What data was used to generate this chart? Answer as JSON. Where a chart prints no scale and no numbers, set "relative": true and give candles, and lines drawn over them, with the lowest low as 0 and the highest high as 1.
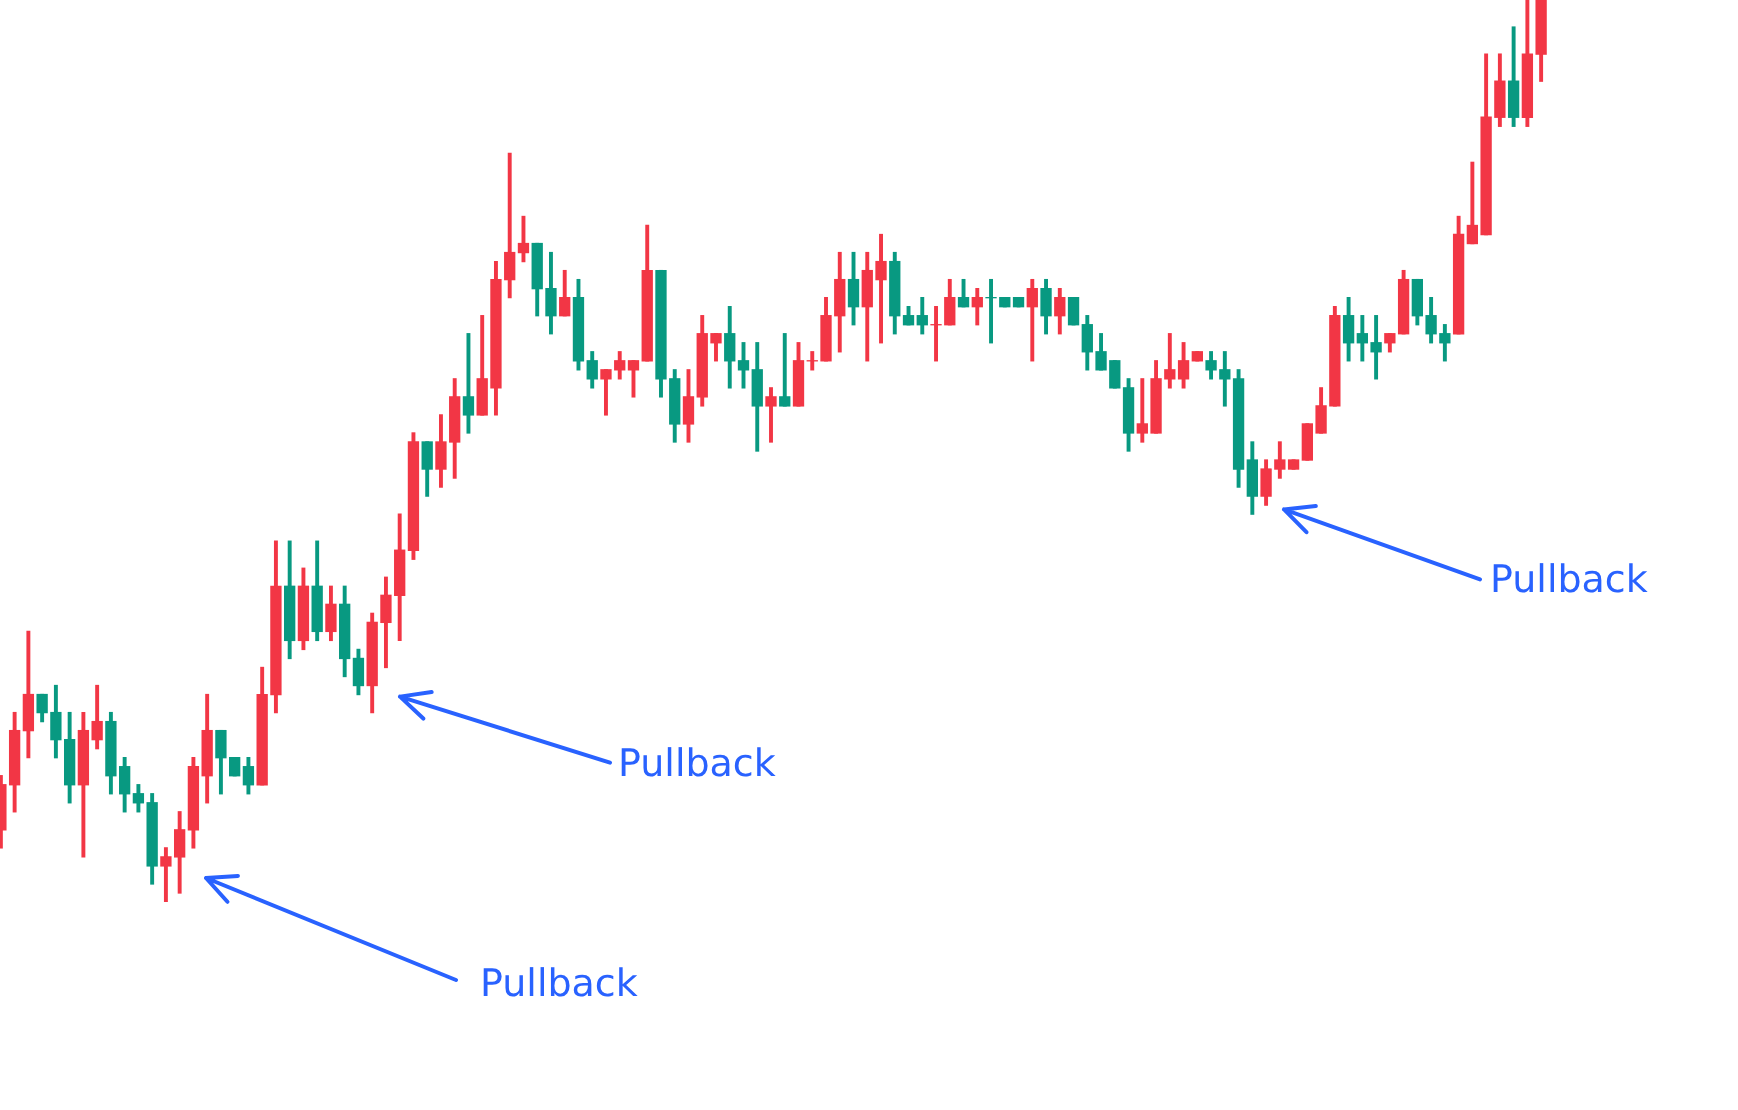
{
  "chart_data": {
    "type": "candlestick",
    "relative": true,
    "categories": [
      null,
      null,
      null,
      null,
      null,
      null,
      null,
      null,
      null,
      null,
      null,
      null,
      null,
      null,
      null,
      null,
      null,
      null,
      null,
      null,
      null,
      null,
      null,
      null,
      null,
      null,
      null,
      null,
      null,
      null,
      null,
      null,
      null,
      null,
      null,
      null,
      null,
      null,
      null,
      null,
      null,
      null,
      null,
      null,
      null,
      null,
      null,
      null,
      null,
      null,
      null,
      null,
      null,
      null,
      null,
      null,
      null,
      null,
      null,
      null,
      null,
      null,
      null,
      null,
      null,
      null,
      null,
      null,
      null,
      null,
      null,
      null,
      null,
      null,
      null,
      null,
      null,
      null,
      null,
      null,
      null,
      null,
      null,
      null,
      null,
      null,
      null,
      null,
      null,
      null,
      null,
      null,
      null,
      null,
      null,
      null,
      null,
      null,
      null,
      null,
      null,
      null,
      null,
      null,
      null,
      null,
      null,
      null,
      null,
      null,
      null,
      null,
      null
    ],
    "ohlc": [
      [
        0.08,
        0.14,
        0.06,
        0.13
      ],
      [
        0.13,
        0.21,
        0.1,
        0.19
      ],
      [
        0.19,
        0.3,
        0.16,
        0.23
      ],
      [
        0.23,
        0.23,
        0.2,
        0.21
      ],
      [
        0.21,
        0.24,
        0.16,
        0.18
      ],
      [
        0.18,
        0.21,
        0.11,
        0.13
      ],
      [
        0.13,
        0.21,
        0.05,
        0.19
      ],
      [
        0.18,
        0.24,
        0.17,
        0.2
      ],
      [
        0.2,
        0.21,
        0.12,
        0.14
      ],
      [
        0.15,
        0.16,
        0.1,
        0.12
      ],
      [
        0.12,
        0.13,
        0.1,
        0.11
      ],
      [
        0.11,
        0.12,
        0.02,
        0.04
      ],
      [
        0.04,
        0.06,
        0,
        0.05
      ],
      [
        0.05,
        0.1,
        0.01,
        0.08
      ],
      [
        0.08,
        0.16,
        0.06,
        0.15
      ],
      [
        0.14,
        0.23,
        0.11,
        0.19
      ],
      [
        0.19,
        0.19,
        0.12,
        0.16
      ],
      [
        0.16,
        0.16,
        0.14,
        0.14
      ],
      [
        0.15,
        0.16,
        0.12,
        0.13
      ],
      [
        0.13,
        0.26,
        0.13,
        0.23
      ],
      [
        0.23,
        0.4,
        0.21,
        0.35
      ],
      [
        0.35,
        0.4,
        0.27,
        0.29
      ],
      [
        0.29,
        0.37,
        0.28,
        0.35
      ],
      [
        0.35,
        0.4,
        0.29,
        0.3
      ],
      [
        0.3,
        0.35,
        0.29,
        0.33
      ],
      [
        0.33,
        0.35,
        0.25,
        0.27
      ],
      [
        0.27,
        0.28,
        0.23,
        0.24
      ],
      [
        0.24,
        0.32,
        0.21,
        0.31
      ],
      [
        0.31,
        0.36,
        0.26,
        0.34
      ],
      [
        0.34,
        0.43,
        0.29,
        0.39
      ],
      [
        0.39,
        0.52,
        0.38,
        0.51
      ],
      [
        0.51,
        0.51,
        0.45,
        0.48
      ],
      [
        0.48,
        0.54,
        0.46,
        0.51
      ],
      [
        0.51,
        0.58,
        0.47,
        0.56
      ],
      [
        0.56,
        0.63,
        0.52,
        0.54
      ],
      [
        0.54,
        0.65,
        0.54,
        0.58
      ],
      [
        0.57,
        0.71,
        0.54,
        0.69
      ],
      [
        0.69,
        0.83,
        0.67,
        0.72
      ],
      [
        0.72,
        0.76,
        0.71,
        0.73
      ],
      [
        0.73,
        0.73,
        0.65,
        0.68
      ],
      [
        0.68,
        0.72,
        0.63,
        0.65
      ],
      [
        0.65,
        0.7,
        0.65,
        0.67
      ],
      [
        0.67,
        0.69,
        0.59,
        0.6
      ],
      [
        0.6,
        0.61,
        0.57,
        0.58
      ],
      [
        0.58,
        0.59,
        0.54,
        0.59
      ],
      [
        0.59,
        0.61,
        0.58,
        0.6
      ],
      [
        0.59,
        0.6,
        0.56,
        0.6
      ],
      [
        0.6,
        0.75,
        0.6,
        0.7
      ],
      [
        0.7,
        0.7,
        0.56,
        0.58
      ],
      [
        0.58,
        0.59,
        0.51,
        0.53
      ],
      [
        0.53,
        0.59,
        0.51,
        0.56
      ],
      [
        0.56,
        0.65,
        0.55,
        0.63
      ],
      [
        0.62,
        0.63,
        0.6,
        0.63
      ],
      [
        0.63,
        0.66,
        0.57,
        0.6
      ],
      [
        0.6,
        0.62,
        0.57,
        0.59
      ],
      [
        0.59,
        0.62,
        0.5,
        0.55
      ],
      [
        0.55,
        0.57,
        0.51,
        0.56
      ],
      [
        0.56,
        0.63,
        0.55,
        0.55
      ],
      [
        0.55,
        0.62,
        0.55,
        0.6
      ],
      [
        0.6,
        0.61,
        0.59,
        0.6
      ],
      [
        0.6,
        0.67,
        0.6,
        0.65
      ],
      [
        0.65,
        0.72,
        0.61,
        0.69
      ],
      [
        0.69,
        0.72,
        0.64,
        0.66
      ],
      [
        0.66,
        0.72,
        0.6,
        0.7
      ],
      [
        0.69,
        0.74,
        0.62,
        0.71
      ],
      [
        0.71,
        0.72,
        0.63,
        0.65
      ],
      [
        0.65,
        0.66,
        0.64,
        0.64
      ],
      [
        0.65,
        0.67,
        0.63,
        0.64
      ],
      [
        0.64,
        0.66,
        0.6,
        0.64
      ],
      [
        0.64,
        0.69,
        0.64,
        0.67
      ],
      [
        0.67,
        0.69,
        0.66,
        0.66
      ],
      [
        0.66,
        0.68,
        0.64,
        0.67
      ],
      [
        0.67,
        0.69,
        0.62,
        0.67
      ],
      [
        0.67,
        0.67,
        0.66,
        0.66
      ],
      [
        0.67,
        0.67,
        0.66,
        0.66
      ],
      [
        0.66,
        0.69,
        0.6,
        0.68
      ],
      [
        0.68,
        0.69,
        0.63,
        0.65
      ],
      [
        0.65,
        0.68,
        0.63,
        0.67
      ],
      [
        0.67,
        0.67,
        0.64,
        0.64
      ],
      [
        0.64,
        0.65,
        0.59,
        0.61
      ],
      [
        0.61,
        0.63,
        0.59,
        0.59
      ],
      [
        0.6,
        0.6,
        0.57,
        0.57
      ],
      [
        0.57,
        0.58,
        0.5,
        0.52
      ],
      [
        0.52,
        0.58,
        0.51,
        0.53
      ],
      [
        0.52,
        0.6,
        0.52,
        0.58
      ],
      [
        0.58,
        0.63,
        0.57,
        0.59
      ],
      [
        0.58,
        0.62,
        0.57,
        0.6
      ],
      [
        0.6,
        0.61,
        0.6,
        0.61
      ],
      [
        0.6,
        0.61,
        0.58,
        0.59
      ],
      [
        0.59,
        0.61,
        0.55,
        0.58
      ],
      [
        0.58,
        0.59,
        0.46,
        0.48
      ],
      [
        0.49,
        0.51,
        0.43,
        0.45
      ],
      [
        0.45,
        0.49,
        0.44,
        0.48
      ],
      [
        0.48,
        0.51,
        0.47,
        0.49
      ],
      [
        0.48,
        0.49,
        0.48,
        0.49
      ],
      [
        0.49,
        0.53,
        0.49,
        0.53
      ],
      [
        0.52,
        0.57,
        0.52,
        0.55
      ],
      [
        0.55,
        0.66,
        0.55,
        0.65
      ],
      [
        0.65,
        0.67,
        0.6,
        0.62
      ],
      [
        0.63,
        0.65,
        0.6,
        0.62
      ],
      [
        0.62,
        0.65,
        0.58,
        0.61
      ],
      [
        0.62,
        0.63,
        0.61,
        0.63
      ],
      [
        0.63,
        0.7,
        0.63,
        0.69
      ],
      [
        0.69,
        0.69,
        0.64,
        0.65
      ],
      [
        0.65,
        0.67,
        0.62,
        0.63
      ],
      [
        0.63,
        0.64,
        0.6,
        0.62
      ],
      [
        0.63,
        0.76,
        0.63,
        0.74
      ],
      [
        0.73,
        0.82,
        0.73,
        0.75
      ],
      [
        0.74,
        0.94,
        0.74,
        0.87
      ],
      [
        0.87,
        0.94,
        0.86,
        0.91
      ],
      [
        0.91,
        0.97,
        0.86,
        0.87
      ],
      [
        0.87,
        1,
        0.86,
        0.94
      ],
      [
        0.94,
        1,
        0.91,
        1
      ]
    ],
    "colors": [
      "#f23645",
      "#f23645",
      "#f23645",
      "#089981",
      "#089981",
      "#089981",
      "#f23645",
      "#f23645",
      "#089981",
      "#089981",
      "#089981",
      "#089981",
      "#f23645",
      "#f23645",
      "#f23645",
      "#f23645",
      "#089981",
      "#089981",
      "#089981",
      "#f23645",
      "#f23645",
      "#089981",
      "#f23645",
      "#089981",
      "#f23645",
      "#089981",
      "#089981",
      "#f23645",
      "#f23645",
      "#f23645",
      "#f23645",
      "#089981",
      "#f23645",
      "#f23645",
      "#089981",
      "#f23645",
      "#f23645",
      "#f23645",
      "#f23645",
      "#089981",
      "#089981",
      "#f23645",
      "#089981",
      "#089981",
      "#f23645",
      "#f23645",
      "#f23645",
      "#f23645",
      "#089981",
      "#089981",
      "#f23645",
      "#f23645",
      "#f23645",
      "#089981",
      "#089981",
      "#089981",
      "#f23645",
      "#089981",
      "#f23645",
      "#f23645",
      "#f23645",
      "#f23645",
      "#089981",
      "#f23645",
      "#f23645",
      "#089981",
      "#089981",
      "#089981",
      "#f23645",
      "#f23645",
      "#089981",
      "#f23645",
      "#089981",
      "#089981",
      "#089981",
      "#f23645",
      "#089981",
      "#f23645",
      "#089981",
      "#089981",
      "#089981",
      "#089981",
      "#089981",
      "#f23645",
      "#f23645",
      "#f23645",
      "#f23645",
      "#f23645",
      "#089981",
      "#089981",
      "#089981",
      "#089981",
      "#f23645",
      "#f23645",
      "#f23645",
      "#f23645",
      "#f23645",
      "#f23645",
      "#089981",
      "#089981",
      "#089981",
      "#f23645",
      "#f23645",
      "#089981",
      "#089981",
      "#089981",
      "#f23645",
      "#f23645",
      "#f23645",
      "#f23645",
      "#089981",
      "#f23645",
      "#f23645"
    ],
    "annotations": [
      "Pullback",
      "Pullback",
      "Pullback"
    ]
  }
}
